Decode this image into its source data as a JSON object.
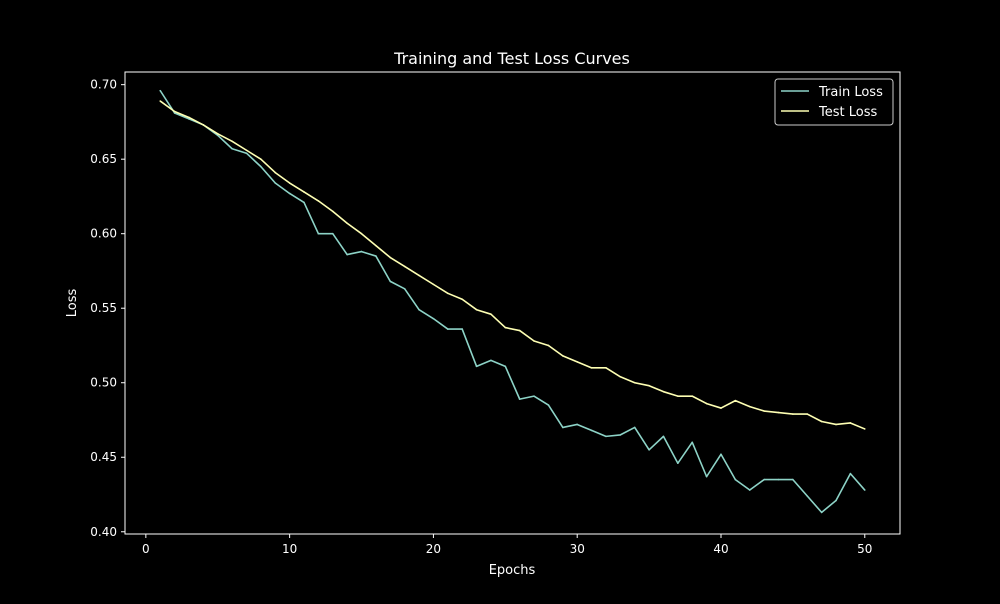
{
  "chart_data": {
    "type": "line",
    "title": "Training and Test Loss Curves",
    "xlabel": "Epochs",
    "ylabel": "Loss",
    "xlim": [
      -1.45,
      52.45
    ],
    "ylim": [
      0.3985,
      0.7085
    ],
    "xticks": [
      0,
      10,
      20,
      30,
      40,
      50
    ],
    "yticks": [
      "0.40",
      "0.45",
      "0.50",
      "0.55",
      "0.60",
      "0.65",
      "0.70"
    ],
    "grid": false,
    "legend_placement": "top-right",
    "x": [
      1,
      2,
      3,
      4,
      5,
      6,
      7,
      8,
      9,
      10,
      11,
      12,
      13,
      14,
      15,
      16,
      17,
      18,
      19,
      20,
      21,
      22,
      23,
      24,
      25,
      26,
      27,
      28,
      29,
      30,
      31,
      32,
      33,
      34,
      35,
      36,
      37,
      38,
      39,
      40,
      41,
      42,
      43,
      44,
      45,
      46,
      47,
      48,
      49,
      50
    ],
    "series": [
      {
        "name": "Train Loss",
        "color": "#8dd3c7",
        "values": [
          0.696,
          0.681,
          0.677,
          0.673,
          0.666,
          0.657,
          0.654,
          0.645,
          0.634,
          0.627,
          0.621,
          0.6,
          0.6,
          0.586,
          0.588,
          0.585,
          0.568,
          0.563,
          0.549,
          0.543,
          0.536,
          0.536,
          0.511,
          0.515,
          0.511,
          0.489,
          0.491,
          0.485,
          0.47,
          0.472,
          0.468,
          0.464,
          0.465,
          0.47,
          0.455,
          0.464,
          0.446,
          0.46,
          0.437,
          0.452,
          0.435,
          0.428,
          0.435,
          0.435,
          0.435,
          0.424,
          0.413,
          0.421,
          0.439,
          0.428
        ]
      },
      {
        "name": "Test Loss",
        "color": "#feffb3",
        "values": [
          0.689,
          0.682,
          0.678,
          0.673,
          0.667,
          0.662,
          0.656,
          0.65,
          0.641,
          0.634,
          0.628,
          0.622,
          0.615,
          0.607,
          0.6,
          0.592,
          0.584,
          0.578,
          0.572,
          0.566,
          0.56,
          0.556,
          0.549,
          0.546,
          0.537,
          0.535,
          0.528,
          0.525,
          0.518,
          0.514,
          0.51,
          0.51,
          0.504,
          0.5,
          0.498,
          0.494,
          0.491,
          0.491,
          0.486,
          0.483,
          0.488,
          0.484,
          0.481,
          0.48,
          0.479,
          0.479,
          0.474,
          0.472,
          0.473,
          0.469
        ]
      }
    ]
  }
}
